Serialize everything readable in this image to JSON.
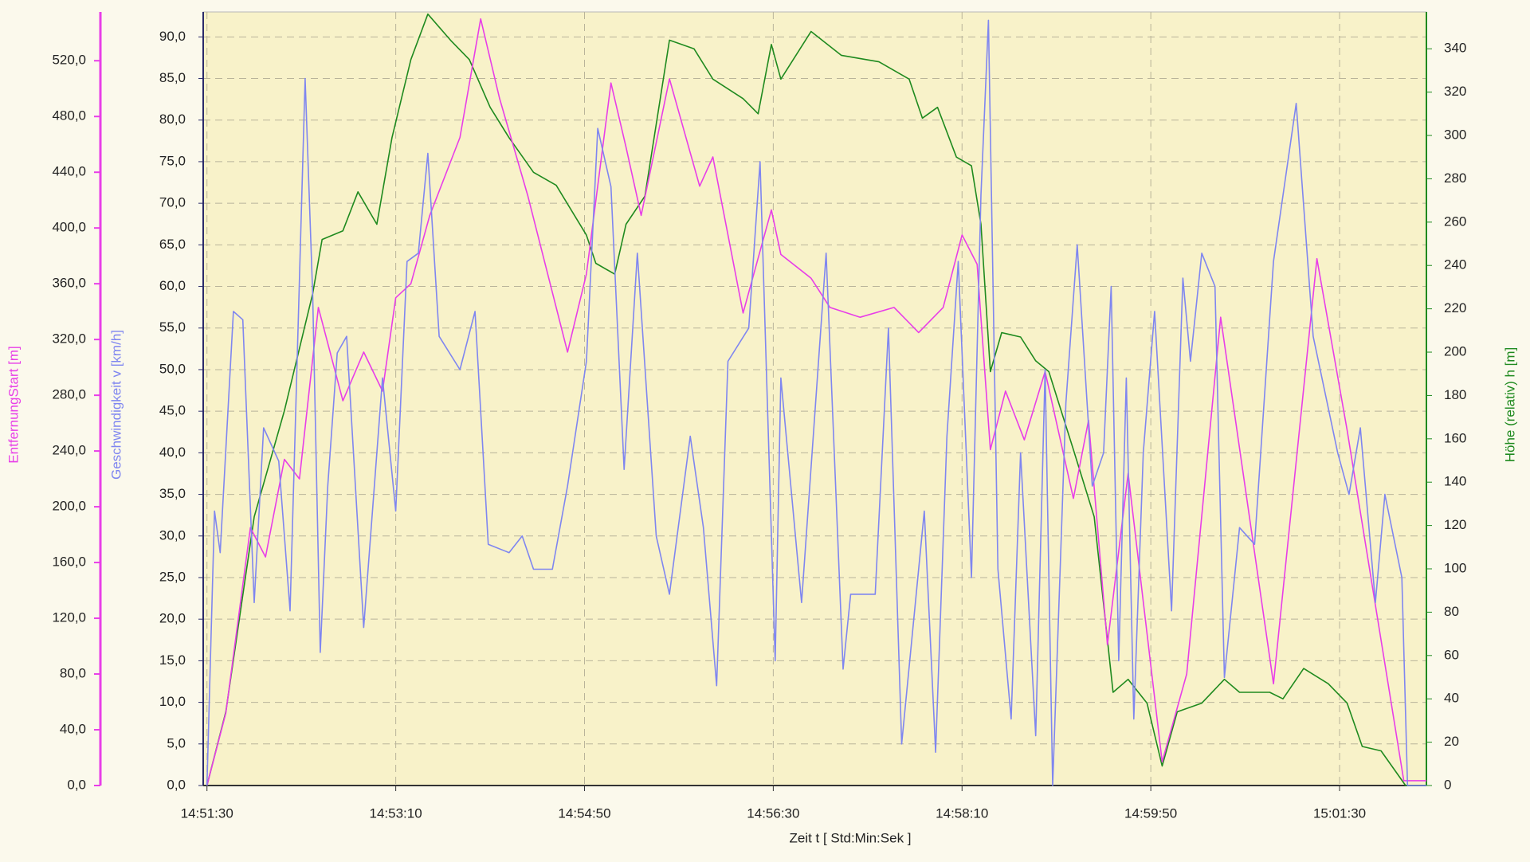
{
  "chart_data": {
    "type": "line",
    "xlabel": "Zeit    t    [ Std:Min:Sek ]",
    "ylabel": "Geschwindigkeit   v   [km/h]",
    "y2label": "Höhe (relativ)   h   [m]",
    "y3label": "EntfernungStart   [m]",
    "xlim": [
      "14:51:28",
      "15:02:16"
    ],
    "xticks": [
      "14:51:30",
      "14:53:10",
      "14:54:50",
      "14:56:30",
      "14:58:10",
      "14:59:50",
      "15:01:30"
    ],
    "ylim": [
      0,
      93
    ],
    "yticks": [
      {
        "value": 0,
        "label": "0,0"
      },
      {
        "value": 5,
        "label": "5,0"
      },
      {
        "value": 10,
        "label": "10,0"
      },
      {
        "value": 15,
        "label": "15,0"
      },
      {
        "value": 20,
        "label": "20,0"
      },
      {
        "value": 25,
        "label": "25,0"
      },
      {
        "value": 30,
        "label": "30,0"
      },
      {
        "value": 35,
        "label": "35,0"
      },
      {
        "value": 40,
        "label": "40,0"
      },
      {
        "value": 45,
        "label": "45,0"
      },
      {
        "value": 50,
        "label": "50,0"
      },
      {
        "value": 55,
        "label": "55,0"
      },
      {
        "value": 60,
        "label": "60,0"
      },
      {
        "value": 65,
        "label": "65,0"
      },
      {
        "value": 70,
        "label": "70,0"
      },
      {
        "value": 75,
        "label": "75,0"
      },
      {
        "value": 80,
        "label": "80,0"
      },
      {
        "value": 85,
        "label": "85,0"
      },
      {
        "value": 90,
        "label": "90,0"
      }
    ],
    "y2lim": [
      0,
      357
    ],
    "y2ticks": [
      0,
      20,
      40,
      60,
      80,
      100,
      120,
      140,
      160,
      180,
      200,
      220,
      240,
      260,
      280,
      300,
      320,
      340
    ],
    "y3lim": [
      0,
      555
    ],
    "y3ticks": [
      {
        "value": 0,
        "label": "0,0"
      },
      {
        "value": 40,
        "label": "40,0"
      },
      {
        "value": 80,
        "label": "80,0"
      },
      {
        "value": 120,
        "label": "120,0"
      },
      {
        "value": 160,
        "label": "160,0"
      },
      {
        "value": 200,
        "label": "200,0"
      },
      {
        "value": 240,
        "label": "240,0"
      },
      {
        "value": 280,
        "label": "280,0"
      },
      {
        "value": 320,
        "label": "320,0"
      },
      {
        "value": 360,
        "label": "360,0"
      },
      {
        "value": 400,
        "label": "400,0"
      },
      {
        "value": 440,
        "label": "440,0"
      },
      {
        "value": 480,
        "label": "480,0"
      },
      {
        "value": 520,
        "label": "520,0"
      }
    ],
    "grid": true,
    "series": [
      {
        "axis": "y2",
        "color": "#1f8a1f",
        "x": [
          "14:51:30",
          "14:51:40",
          "14:51:55",
          "14:52:11",
          "14:52:26",
          "14:52:31",
          "14:52:42",
          "14:52:50",
          "14:53:00",
          "14:53:08",
          "14:53:18",
          "14:53:27",
          "14:53:39",
          "14:53:49",
          "14:54:00",
          "14:54:10",
          "14:54:23",
          "14:54:35",
          "14:54:51",
          "14:54:56",
          "14:55:06",
          "14:55:12",
          "14:55:22",
          "14:55:35",
          "14:55:48",
          "14:55:58",
          "14:56:14",
          "14:56:22",
          "14:56:29",
          "14:56:34",
          "14:56:50",
          "14:57:06",
          "14:57:26",
          "14:57:42",
          "14:57:49",
          "14:57:57",
          "14:58:07",
          "14:58:15",
          "14:58:20",
          "14:58:25",
          "14:58:31",
          "14:58:41",
          "14:58:49",
          "14:58:56",
          "14:59:09",
          "14:59:20",
          "14:59:30",
          "14:59:38",
          "14:59:48",
          "14:59:56",
          "15:00:04",
          "15:00:17",
          "15:00:29",
          "15:00:37",
          "15:00:53",
          "15:01:00",
          "15:01:11",
          "15:01:24",
          "15:01:34",
          "15:01:42",
          "15:01:52",
          "15:02:05",
          "15:02:16"
        ],
        "values": [
          0,
          34,
          124,
          173,
          227,
          252,
          256,
          274,
          259,
          299,
          335,
          356,
          344,
          335,
          313,
          299,
          283,
          277,
          254,
          241,
          236,
          259,
          272,
          344,
          340,
          326,
          317,
          310,
          342,
          326,
          348,
          337,
          334,
          326,
          308,
          313,
          290,
          286,
          259,
          191,
          209,
          207,
          196,
          191,
          155,
          124,
          43,
          49,
          38,
          9,
          34,
          38,
          49,
          43,
          43,
          40,
          54,
          47,
          38,
          18,
          16,
          0,
          0
        ]
      },
      {
        "axis": "y3",
        "color": "#e83ee8",
        "x": [
          "14:51:30",
          "14:51:40",
          "14:51:53",
          "14:52:01",
          "14:52:11",
          "14:52:19",
          "14:52:29",
          "14:52:42",
          "14:52:53",
          "14:53:03",
          "14:53:10",
          "14:53:18",
          "14:53:28",
          "14:53:44",
          "14:53:55",
          "14:54:05",
          "14:54:20",
          "14:54:41",
          "14:54:51",
          "14:55:04",
          "14:55:12",
          "14:55:20",
          "14:55:35",
          "14:55:51",
          "14:55:58",
          "14:56:14",
          "14:56:29",
          "14:56:34",
          "14:56:50",
          "14:57:00",
          "14:57:16",
          "14:57:34",
          "14:57:47",
          "14:58:00",
          "14:58:10",
          "14:58:18",
          "14:58:25",
          "14:58:33",
          "14:58:43",
          "14:58:54",
          "14:59:09",
          "14:59:17",
          "14:59:27",
          "14:59:38",
          "14:59:56",
          "15:00:09",
          "15:00:27",
          "15:00:55",
          "15:01:18",
          "15:01:34",
          "15:02:04",
          "15:02:16"
        ],
        "values": [
          0,
          52,
          185,
          164,
          234,
          220,
          343,
          276,
          311,
          283,
          350,
          360,
          409,
          465,
          550,
          493,
          423,
          311,
          367,
          504,
          458,
          409,
          507,
          430,
          451,
          339,
          413,
          381,
          364,
          343,
          336,
          343,
          325,
          343,
          395,
          374,
          241,
          283,
          248,
          297,
          206,
          262,
          101,
          224,
          17,
          80,
          336,
          73,
          378,
          255,
          3.5,
          3.5
        ]
      },
      {
        "axis": "y",
        "color": "#7f86f0",
        "x": [
          "14:51:30",
          "14:51:34",
          "14:51:37",
          "14:51:44",
          "14:51:49",
          "14:51:55",
          "14:52:00",
          "14:52:08",
          "14:52:14",
          "14:52:22",
          "14:52:26",
          "14:52:30",
          "14:52:34",
          "14:52:39",
          "14:52:44",
          "14:52:53",
          "14:53:03",
          "14:53:10",
          "14:53:16",
          "14:53:22",
          "14:53:27",
          "14:53:33",
          "14:53:44",
          "14:53:52",
          "14:53:59",
          "14:54:10",
          "14:54:17",
          "14:54:23",
          "14:54:33",
          "14:54:41",
          "14:54:51",
          "14:54:57",
          "14:55:04",
          "14:55:11",
          "14:55:18",
          "14:55:28",
          "14:55:35",
          "14:55:46",
          "14:55:53",
          "14:56:00",
          "14:56:06",
          "14:56:17",
          "14:56:23",
          "14:56:31",
          "14:56:34",
          "14:56:45",
          "14:56:58",
          "14:57:07",
          "14:57:11",
          "14:57:24",
          "14:57:31",
          "14:57:38",
          "14:57:44",
          "14:57:50",
          "14:57:56",
          "14:58:02",
          "14:58:08",
          "14:58:15",
          "14:58:20",
          "14:58:24",
          "14:58:29",
          "14:58:36",
          "14:58:41",
          "14:58:49",
          "14:58:54",
          "14:58:58",
          "14:59:05",
          "14:59:11",
          "14:59:19",
          "14:59:25",
          "14:59:29",
          "14:59:33",
          "14:59:37",
          "14:59:41",
          "14:59:46",
          "14:59:52",
          "15:00:01",
          "15:00:07",
          "15:00:11",
          "15:00:17",
          "15:00:24",
          "15:00:29",
          "15:00:37",
          "15:00:45",
          "15:00:55",
          "15:01:07",
          "15:01:16",
          "15:01:29",
          "15:01:35",
          "15:01:41",
          "15:01:49",
          "15:01:54",
          "15:02:03",
          "15:02:06",
          "15:02:16"
        ],
        "values": [
          0,
          33,
          28,
          57,
          56,
          22,
          43,
          39,
          21,
          85,
          59,
          16,
          36,
          52,
          54,
          19,
          49,
          33,
          63,
          64,
          76,
          54,
          50,
          57,
          29,
          28,
          30,
          26,
          26,
          36,
          51,
          79,
          72,
          38,
          64,
          30,
          23,
          42,
          31,
          12,
          51,
          55,
          75,
          15,
          49,
          22,
          64,
          14,
          23,
          23,
          55,
          5,
          19,
          33,
          4,
          42,
          63,
          25,
          71,
          92,
          26,
          8,
          40,
          6,
          50,
          0,
          46,
          65,
          36,
          40,
          60,
          15,
          49,
          8,
          40,
          57,
          21,
          61,
          51,
          64,
          60,
          13,
          31,
          29,
          63,
          82,
          54,
          40,
          35,
          43,
          22,
          35,
          25,
          0,
          0
        ]
      }
    ]
  }
}
